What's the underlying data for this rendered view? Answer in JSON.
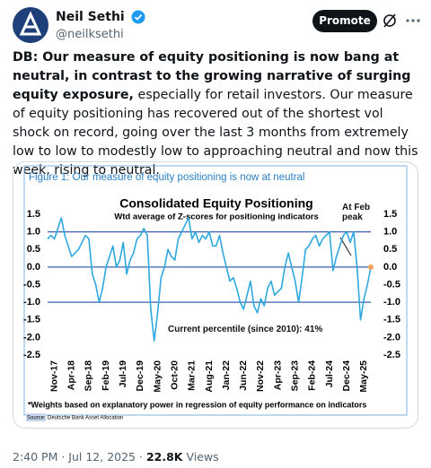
{
  "tweet": {
    "author": {
      "name": "Neil Sethi",
      "handle": "@neilksethi"
    },
    "button": "Promote",
    "text_bold": "DB: Our measure of equity positioning is now bang at neutral, in contrast to the growing narrative of surging equity exposure,",
    "text": "especially for retail investors. Our measure of equity positioning has recovered out of the shortest vol shock on record, going over the last 3 months from extremely low to low to modestly low to approaching neutral and now this week, rising to neutral.",
    "time": "2:40 PM · Jul 12, 2025",
    "separator": "·",
    "views_count": "22.8K",
    "views_label": "Views"
  },
  "figure": {
    "caption": "Figure 1: Our measure of equity positioning is now at neutral",
    "footnote": "*Weights based on explanatory power in regression of equity performance on indicators",
    "source_label": "Source:",
    "source": "Deutsche Bank Asset Allocation"
  },
  "chart_data": {
    "type": "line",
    "title": "Consolidated Equity Positioning",
    "subtitle": "Wtd average of Z-scores for positioning indicators",
    "annotations": [
      "At Feb peak",
      "Current percentile (since 2010): 41%"
    ],
    "categories": [
      null,
      null,
      "Nov-17",
      null,
      null,
      null,
      null,
      "Apr-18",
      null,
      null,
      null,
      null,
      "Sep-18",
      null,
      null,
      null,
      null,
      "Feb-19",
      null,
      null,
      null,
      null,
      "Jul-19",
      null,
      null,
      null,
      null,
      "Dec-19",
      null,
      null,
      null,
      null,
      "May-20",
      null,
      null,
      null,
      null,
      "Oct-20",
      null,
      null,
      null,
      null,
      "Mar-21",
      null,
      null,
      null,
      null,
      "Aug-21",
      null,
      null,
      null,
      null,
      "Jan-22",
      null,
      null,
      null,
      null,
      "Jun-22",
      null,
      null,
      null,
      null,
      "Nov-22",
      null,
      null,
      null,
      null,
      "Apr-23",
      null,
      null,
      null,
      null,
      "Sep-23",
      null,
      null,
      null,
      null,
      "Feb-24",
      null,
      null,
      null,
      null,
      "Jul-24",
      null,
      null,
      null,
      null,
      "Dec-24",
      null,
      null,
      null,
      null,
      "May-25",
      null,
      null
    ],
    "values": [
      0.8,
      0.9,
      0.8,
      1.1,
      1.4,
      0.9,
      0.6,
      0.3,
      0.4,
      0.5,
      0.7,
      0.9,
      0.8,
      -0.2,
      -0.5,
      -1.0,
      -0.6,
      0.0,
      0.3,
      0.6,
      0.0,
      0.2,
      0.7,
      -0.2,
      0.2,
      0.4,
      0.8,
      0.9,
      1.1,
      0.9,
      -1.2,
      -2.1,
      -1.3,
      -0.3,
      0.0,
      0.5,
      0.3,
      0.2,
      0.8,
      1.0,
      1.2,
      1.4,
      0.8,
      1.0,
      0.7,
      0.9,
      0.8,
      1.0,
      0.6,
      0.6,
      0.9,
      0.4,
      0.0,
      -0.4,
      -0.3,
      -0.6,
      -1.0,
      -1.2,
      -0.8,
      -0.4,
      -1.1,
      -1.3,
      -0.9,
      -1.1,
      -0.6,
      -0.4,
      -0.8,
      -0.7,
      -0.6,
      0.0,
      0.4,
      0.0,
      -0.4,
      -1.0,
      -0.3,
      0.5,
      0.6,
      0.8,
      0.9,
      0.6,
      0.8,
      0.9,
      1.0,
      -0.1,
      0.3,
      0.6,
      0.9,
      1.0,
      0.7,
      1.0,
      0.0,
      -1.5,
      -0.9,
      -0.5,
      0.0
    ],
    "color": "#2fa8de",
    "last_point_color": "#f4a460",
    "ylim": [
      -2.5,
      2.0
    ],
    "yticks": [
      1.5,
      {
        "value": 1.0,
        "label": "1.0"
      },
      0.5,
      {
        "value": 0.0,
        "label": "0.0"
      },
      -0.5,
      {
        "value": -1.0,
        "label": "-1.0"
      },
      -1.5,
      {
        "value": -2.0,
        "label": "-2.0"
      },
      -2.5
    ],
    "y2lim": [
      -2.5,
      2.0
    ],
    "y2ticks": [
      1.5,
      {
        "value": 1.0,
        "label": "1.0"
      },
      0.5,
      {
        "value": 0.0,
        "label": "0.0"
      },
      -0.5,
      {
        "value": -1.0,
        "label": "-1.0"
      },
      -1.5,
      {
        "value": -2.0,
        "label": "-2.0"
      },
      -2.5
    ],
    "hlines": [
      1.0,
      0.0,
      -1.0
    ],
    "hline_color": "#3a5fb0"
  }
}
